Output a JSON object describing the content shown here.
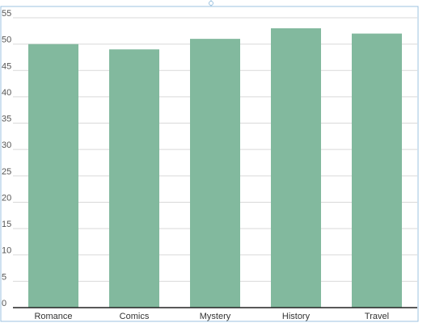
{
  "chart_data": {
    "type": "bar",
    "title": "",
    "xlabel": "",
    "ylabel": "",
    "categories": [
      "Romance",
      "Comics",
      "Mystery",
      "History",
      "Travel"
    ],
    "values": [
      50,
      49,
      51,
      53,
      52
    ],
    "ylim": [
      0,
      55
    ],
    "yticks": [
      "0",
      "5",
      "10",
      "15",
      "20",
      "25",
      "30",
      "35",
      "40",
      "45",
      "50",
      "55"
    ],
    "grid": true,
    "bar_color": "#82b99e",
    "grid_color": "#d9d9d9",
    "frame_color": "#9cc3e0",
    "axis_color": "#222222"
  }
}
